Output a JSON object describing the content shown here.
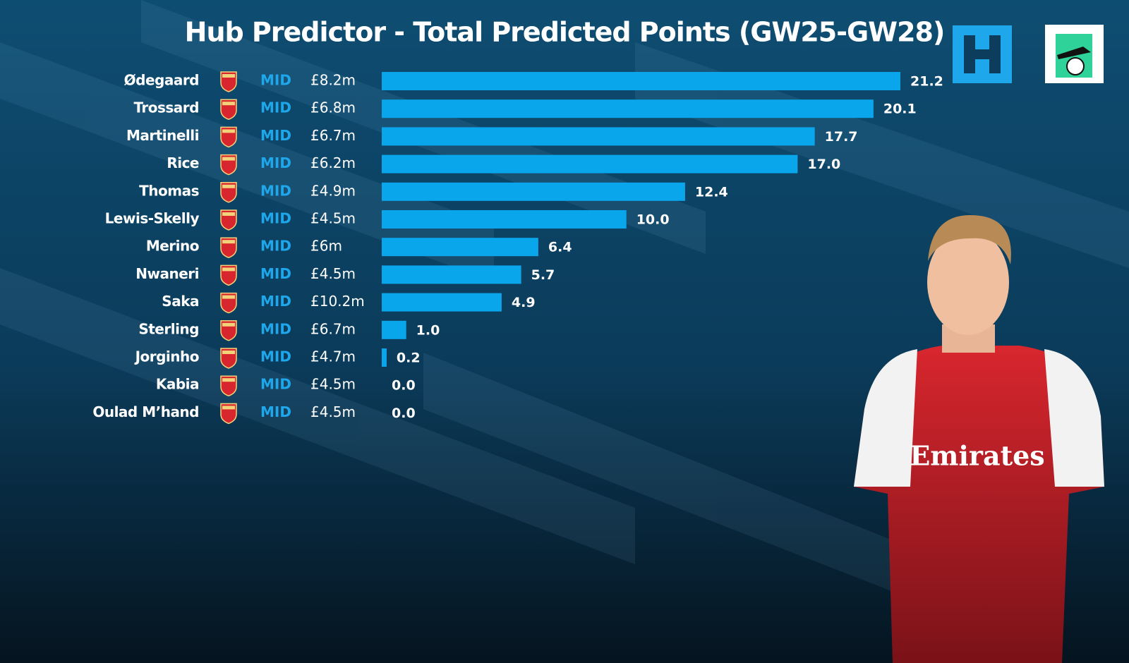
{
  "chart_data": {
    "type": "bar",
    "title": "Hub Predictor - Total Predicted Points (GW25-GW28)",
    "categories": [
      "Ødegaard",
      "Trossard",
      "Martinelli",
      "Rice",
      "Thomas",
      "Lewis-Skelly",
      "Merino",
      "Nwaneri",
      "Saka",
      "Sterling",
      "Jorginho",
      "Kabia",
      "Oulad M’hand"
    ],
    "positions": [
      "MID",
      "MID",
      "MID",
      "MID",
      "MID",
      "MID",
      "MID",
      "MID",
      "MID",
      "MID",
      "MID",
      "MID",
      "MID"
    ],
    "prices": [
      "£8.2m",
      "£6.8m",
      "£6.7m",
      "£6.2m",
      "£4.9m",
      "£4.5m",
      "£6m",
      "£4.5m",
      "£10.2m",
      "£6.7m",
      "£4.7m",
      "£4.5m",
      "£4.5m"
    ],
    "values": [
      21.2,
      20.1,
      17.7,
      17.0,
      12.4,
      10.0,
      6.4,
      5.7,
      4.9,
      1.0,
      0.2,
      0.0,
      0.0
    ],
    "value_labels": [
      "21.2",
      "20.1",
      "17.7",
      "17.0",
      "12.4",
      "10.0",
      "6.4",
      "5.7",
      "4.9",
      "1.0",
      "0.2",
      "0.0",
      "0.0"
    ],
    "color": "#0aa6ec"
  }
}
